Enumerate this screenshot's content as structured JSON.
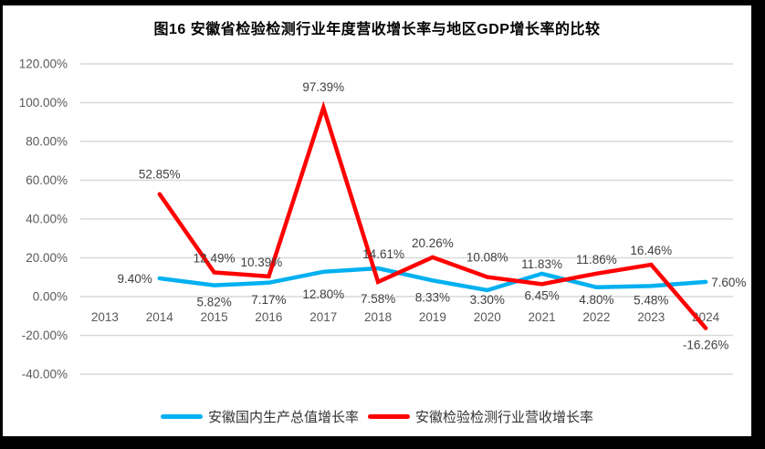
{
  "title": "图16 安徽省检验检测行业年度营收增长率与地区GDP增长率的比较",
  "chart_data": {
    "type": "line",
    "title": "图16 安徽省检验检测行业年度营收增长率与地区GDP增长率的比较",
    "categories": [
      "2013",
      "2014",
      "2015",
      "2016",
      "2017",
      "2018",
      "2019",
      "2020",
      "2021",
      "2022",
      "2023",
      "2024"
    ],
    "y_axis": {
      "min": -40,
      "max": 120,
      "step": 20,
      "tick_labels": [
        "120.00%",
        "100.00%",
        "80.00%",
        "60.00%",
        "40.00%",
        "20.00%",
        "0.00%",
        "-20.00%",
        "-40.00%"
      ],
      "grid": true
    },
    "legend_position": "bottom",
    "series": [
      {
        "name": "安徽国内生产总值增长率",
        "color": "#00B0F0",
        "points": [
          {
            "year": "2014",
            "value": 9.4,
            "label": "9.40%",
            "label_pos": "left"
          },
          {
            "year": "2015",
            "value": 5.82,
            "label": "5.82%",
            "label_pos": "below"
          },
          {
            "year": "2016",
            "value": 7.17,
            "label": "7.17%",
            "label_pos": "below"
          },
          {
            "year": "2017",
            "value": 12.8,
            "label": "12.80%",
            "label_pos": "below",
            "label_dy": 6
          },
          {
            "year": "2018",
            "value": 14.61,
            "label": "14.61%",
            "label_pos": "above",
            "label_dx": 6
          },
          {
            "year": "2019",
            "value": 8.33,
            "label": "8.33%",
            "label_pos": "below"
          },
          {
            "year": "2020",
            "value": 3.3,
            "label": "3.30%",
            "label_pos": "below",
            "label_dy": -8
          },
          {
            "year": "2021",
            "value": 11.83,
            "label": "11.83%",
            "label_pos": "above",
            "label_dy": 5
          },
          {
            "year": "2022",
            "value": 4.8,
            "label": "4.80%",
            "label_pos": "below",
            "label_dy": -5
          },
          {
            "year": "2023",
            "value": 5.48,
            "label": "5.48%",
            "label_pos": "below",
            "label_dy": -3
          },
          {
            "year": "2024",
            "value": 7.6,
            "label": "7.60%",
            "label_pos": "right",
            "label_dx": -3
          }
        ]
      },
      {
        "name": "安徽检验检测行业营收增长率",
        "color": "#FF0000",
        "points": [
          {
            "year": "2014",
            "value": 52.85,
            "label": "52.85%",
            "label_pos": "above",
            "label_dy": -6
          },
          {
            "year": "2015",
            "value": 12.49,
            "label": "12.49%",
            "label_pos": "above"
          },
          {
            "year": "2016",
            "value": 10.39,
            "label": "10.39%",
            "label_pos": "above",
            "label_dx": -8
          },
          {
            "year": "2017",
            "value": 97.39,
            "label": "97.39%",
            "label_pos": "above",
            "label_dy": -7
          },
          {
            "year": "2018",
            "value": 7.58,
            "label": "7.58%",
            "label_pos": "below"
          },
          {
            "year": "2019",
            "value": 20.26,
            "label": "20.26%",
            "label_pos": "above"
          },
          {
            "year": "2020",
            "value": 10.08,
            "label": "10.08%",
            "label_pos": "above",
            "label_dy": -6
          },
          {
            "year": "2021",
            "value": 6.45,
            "label": "6.45%",
            "label_pos": "below",
            "label_dy": -6
          },
          {
            "year": "2022",
            "value": 11.86,
            "label": "11.86%",
            "label_pos": "above"
          },
          {
            "year": "2023",
            "value": 16.46,
            "label": "16.46%",
            "label_pos": "above"
          },
          {
            "year": "2024",
            "value": -16.26,
            "label": "-16.26%",
            "label_pos": "below"
          }
        ]
      }
    ]
  },
  "colors": {
    "gdp_line": "#00B0F0",
    "revenue_line": "#FF0000",
    "gridline": "#D9D9D9",
    "axis_text": "#595959",
    "data_label_text": "#3f3f3f",
    "title_text": "#000000",
    "frame": "#000000",
    "background": "#FFFFFF"
  }
}
